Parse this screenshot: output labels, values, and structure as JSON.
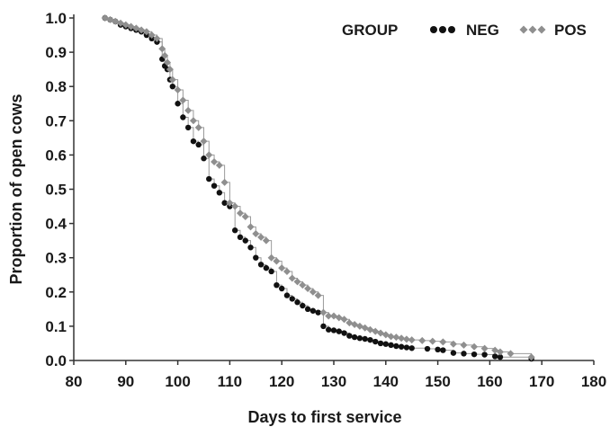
{
  "chart_data": {
    "type": "line",
    "title": "",
    "xlabel": "Days to first service",
    "ylabel": "Proportion of open cows",
    "xlim": [
      80,
      180
    ],
    "ylim": [
      0,
      1
    ],
    "x_ticks": [
      "80",
      "90",
      "100",
      "110",
      "120",
      "130",
      "140",
      "150",
      "160",
      "170",
      "180"
    ],
    "y_ticks": [
      "0.0",
      "0.1",
      "0.2",
      "0.3",
      "0.4",
      "0.5",
      "0.6",
      "0.7",
      "0.8",
      "0.9",
      "1.0"
    ],
    "grid": false,
    "legend": {
      "title": "GROUP",
      "placement": "top-right",
      "entries": [
        "NEG",
        "POS"
      ]
    },
    "series": [
      {
        "name": "NEG",
        "marker": "circle",
        "color": "#111111",
        "step": true,
        "points": [
          [
            86,
            1.0
          ],
          [
            87,
            0.995
          ],
          [
            88,
            0.99
          ],
          [
            89,
            0.98
          ],
          [
            90,
            0.975
          ],
          [
            91,
            0.97
          ],
          [
            92,
            0.965
          ],
          [
            93,
            0.96
          ],
          [
            94,
            0.95
          ],
          [
            95,
            0.94
          ],
          [
            96,
            0.93
          ],
          [
            97,
            0.88
          ],
          [
            97.5,
            0.86
          ],
          [
            98,
            0.85
          ],
          [
            98.5,
            0.82
          ],
          [
            99,
            0.8
          ],
          [
            100,
            0.75
          ],
          [
            101,
            0.71
          ],
          [
            102,
            0.68
          ],
          [
            103,
            0.64
          ],
          [
            104,
            0.63
          ],
          [
            105,
            0.59
          ],
          [
            106,
            0.53
          ],
          [
            107,
            0.51
          ],
          [
            108,
            0.49
          ],
          [
            109,
            0.46
          ],
          [
            110,
            0.45
          ],
          [
            111,
            0.38
          ],
          [
            112,
            0.36
          ],
          [
            113,
            0.35
          ],
          [
            114,
            0.33
          ],
          [
            115,
            0.3
          ],
          [
            116,
            0.28
          ],
          [
            117,
            0.27
          ],
          [
            118,
            0.26
          ],
          [
            119,
            0.22
          ],
          [
            120,
            0.21
          ],
          [
            121,
            0.19
          ],
          [
            122,
            0.18
          ],
          [
            123,
            0.17
          ],
          [
            124,
            0.16
          ],
          [
            125,
            0.15
          ],
          [
            126,
            0.145
          ],
          [
            127,
            0.14
          ],
          [
            128,
            0.1
          ],
          [
            129,
            0.09
          ],
          [
            130,
            0.088
          ],
          [
            131,
            0.085
          ],
          [
            132,
            0.08
          ],
          [
            133,
            0.072
          ],
          [
            134,
            0.068
          ],
          [
            135,
            0.065
          ],
          [
            136,
            0.063
          ],
          [
            137,
            0.06
          ],
          [
            138,
            0.055
          ],
          [
            139,
            0.05
          ],
          [
            140,
            0.048
          ],
          [
            141,
            0.045
          ],
          [
            142,
            0.042
          ],
          [
            143,
            0.04
          ],
          [
            144,
            0.038
          ],
          [
            145,
            0.036
          ],
          [
            148,
            0.034
          ],
          [
            150,
            0.032
          ],
          [
            151,
            0.03
          ],
          [
            153,
            0.022
          ],
          [
            155,
            0.02
          ],
          [
            157,
            0.018
          ],
          [
            159,
            0.017
          ],
          [
            161,
            0.012
          ],
          [
            162,
            0.01
          ],
          [
            168,
            0.005
          ]
        ]
      },
      {
        "name": "POS",
        "marker": "diamond",
        "color": "#8f8f8f",
        "step": true,
        "points": [
          [
            86,
            1.0
          ],
          [
            87,
            0.995
          ],
          [
            88,
            0.99
          ],
          [
            89,
            0.985
          ],
          [
            90,
            0.98
          ],
          [
            91,
            0.975
          ],
          [
            92,
            0.97
          ],
          [
            93,
            0.965
          ],
          [
            94,
            0.96
          ],
          [
            95,
            0.95
          ],
          [
            96,
            0.94
          ],
          [
            97,
            0.91
          ],
          [
            97.5,
            0.89
          ],
          [
            98,
            0.87
          ],
          [
            98.5,
            0.85
          ],
          [
            99,
            0.82
          ],
          [
            100,
            0.79
          ],
          [
            101,
            0.76
          ],
          [
            102,
            0.73
          ],
          [
            103,
            0.7
          ],
          [
            104,
            0.68
          ],
          [
            105,
            0.64
          ],
          [
            106,
            0.6
          ],
          [
            107,
            0.58
          ],
          [
            108,
            0.57
          ],
          [
            109,
            0.52
          ],
          [
            110,
            0.46
          ],
          [
            111,
            0.45
          ],
          [
            112,
            0.43
          ],
          [
            113,
            0.42
          ],
          [
            114,
            0.39
          ],
          [
            115,
            0.37
          ],
          [
            116,
            0.36
          ],
          [
            117,
            0.35
          ],
          [
            118,
            0.3
          ],
          [
            119,
            0.29
          ],
          [
            120,
            0.27
          ],
          [
            121,
            0.26
          ],
          [
            122,
            0.24
          ],
          [
            123,
            0.23
          ],
          [
            124,
            0.22
          ],
          [
            125,
            0.21
          ],
          [
            126,
            0.2
          ],
          [
            127,
            0.19
          ],
          [
            128,
            0.14
          ],
          [
            129,
            0.13
          ],
          [
            130,
            0.13
          ],
          [
            131,
            0.125
          ],
          [
            132,
            0.12
          ],
          [
            133,
            0.11
          ],
          [
            134,
            0.105
          ],
          [
            135,
            0.1
          ],
          [
            136,
            0.095
          ],
          [
            137,
            0.09
          ],
          [
            138,
            0.085
          ],
          [
            139,
            0.08
          ],
          [
            140,
            0.075
          ],
          [
            141,
            0.07
          ],
          [
            142,
            0.068
          ],
          [
            143,
            0.065
          ],
          [
            144,
            0.062
          ],
          [
            145,
            0.06
          ],
          [
            147,
            0.058
          ],
          [
            149,
            0.056
          ],
          [
            151,
            0.054
          ],
          [
            153,
            0.048
          ],
          [
            155,
            0.045
          ],
          [
            157,
            0.04
          ],
          [
            159,
            0.035
          ],
          [
            161,
            0.03
          ],
          [
            162,
            0.025
          ],
          [
            164,
            0.02
          ],
          [
            168,
            0.01
          ]
        ]
      }
    ]
  }
}
